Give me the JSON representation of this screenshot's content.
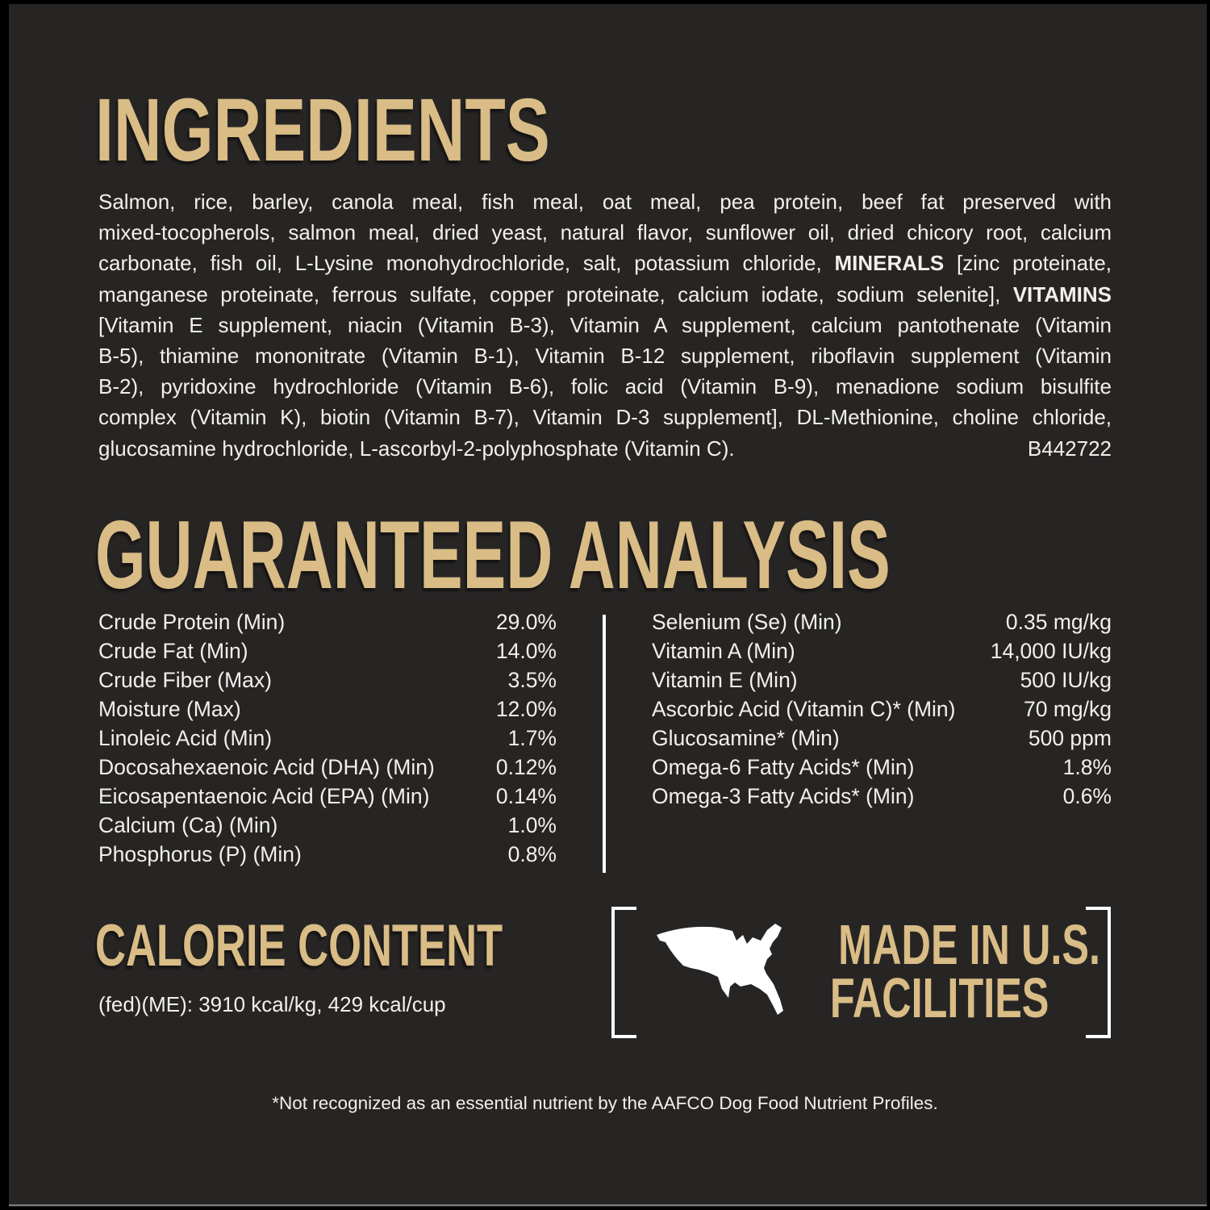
{
  "colors": {
    "background": "#272524",
    "gold": "#d9bc86",
    "text": "#f2f0ed",
    "divider": "#fafafa",
    "edge": "#000000"
  },
  "ingredients": {
    "title": "INGREDIENTS",
    "lines": [
      [
        {
          "t": "Salmon, rice, barley, canola meal, fish meal, oat meal, pea protein, beef fat preserved with",
          "b": false
        }
      ],
      [
        {
          "t": "mixed-tocopherols, salmon meal, dried yeast, natural flavor, sunflower oil, dried chicory root, calcium",
          "b": false
        }
      ],
      [
        {
          "t": "carbonate, fish oil, L-Lysine monohydrochloride, salt, potassium chloride, ",
          "b": false
        },
        {
          "t": "MINERALS",
          "b": true
        },
        {
          "t": " [zinc proteinate,",
          "b": false
        }
      ],
      [
        {
          "t": "manganese proteinate, ferrous sulfate, copper proteinate, calcium iodate, sodium selenite], ",
          "b": false
        },
        {
          "t": "VITAMINS",
          "b": true
        }
      ],
      [
        {
          "t": "[Vitamin E supplement, niacin (Vitamin B-3), Vitamin A supplement, calcium pantothenate (Vitamin",
          "b": false
        }
      ],
      [
        {
          "t": "B-5), thiamine mononitrate (Vitamin B-1), Vitamin B-12 supplement, riboflavin supplement (Vitamin",
          "b": false
        }
      ],
      [
        {
          "t": "B-2), pyridoxine hydrochloride (Vitamin B-6), folic acid (Vitamin B-9), menadione sodium bisulfite",
          "b": false
        }
      ],
      [
        {
          "t": "complex (Vitamin K), biotin (Vitamin B-7), Vitamin D-3 supplement], DL-Methionine, choline chloride,",
          "b": false
        }
      ],
      [
        {
          "t": "glucosamine hydrochloride, L-ascorbyl-2-polyphosphate (Vitamin C).",
          "b": false
        }
      ]
    ],
    "batch_code": "B442722"
  },
  "guaranteed_analysis": {
    "title": "GUARANTEED ANALYSIS",
    "left_rows": [
      {
        "label": "Crude Protein (Min)",
        "value": "29.0%"
      },
      {
        "label": "Crude Fat (Min)",
        "value": "14.0%"
      },
      {
        "label": "Crude Fiber (Max)",
        "value": "3.5%"
      },
      {
        "label": "Moisture (Max)",
        "value": "12.0%"
      },
      {
        "label": "Linoleic Acid (Min)",
        "value": "1.7%"
      },
      {
        "label": "Docosahexaenoic Acid (DHA) (Min)",
        "value": "0.12%"
      },
      {
        "label": "Eicosapentaenoic Acid (EPA) (Min)",
        "value": "0.14%"
      },
      {
        "label": "Calcium (Ca) (Min)",
        "value": "1.0%"
      },
      {
        "label": "Phosphorus (P) (Min)",
        "value": "0.8%"
      }
    ],
    "right_rows": [
      {
        "label": "Selenium (Se) (Min)",
        "value": "0.35 mg/kg"
      },
      {
        "label": "Vitamin A (Min)",
        "value": "14,000 IU/kg"
      },
      {
        "label": "Vitamin E (Min)",
        "value": "500 IU/kg"
      },
      {
        "label": "Ascorbic Acid (Vitamin C)* (Min)",
        "value": "70 mg/kg"
      },
      {
        "label": "Glucosamine* (Min)",
        "value": "500 ppm"
      },
      {
        "label": "Omega-6 Fatty Acids* (Min)",
        "value": "1.8%"
      },
      {
        "label": "Omega-3 Fatty Acids* (Min)",
        "value": "0.6%"
      }
    ]
  },
  "calorie_content": {
    "title": "CALORIE CONTENT",
    "text": "(fed)(ME): 3910 kcal/kg, 429 kcal/cup"
  },
  "made_in": {
    "line1": "MADE IN U.S.",
    "line2": "FACILITIES",
    "icon": "usa-map-icon"
  },
  "footnote": "*Not recognized as an essential nutrient by the AAFCO Dog Food Nutrient Profiles."
}
